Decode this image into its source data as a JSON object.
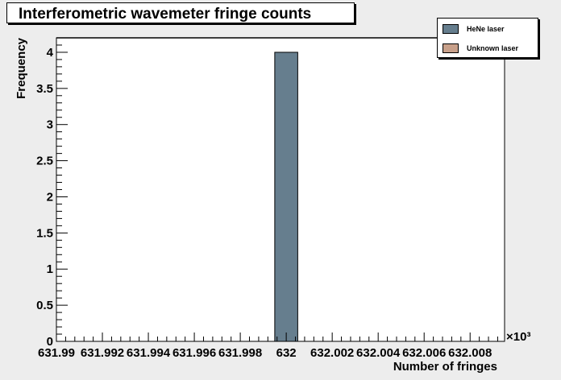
{
  "chart_data": {
    "type": "bar",
    "title": "Interferometric wavemeter fringe counts",
    "xlabel": "Number of fringes",
    "ylabel": "Frequency",
    "x_scale_label": "×10³",
    "x_tick_labels": [
      "631.99",
      "631.992",
      "631.994",
      "631.996",
      "631.998",
      "632",
      "632.002",
      "632.004",
      "632.006",
      "632.008"
    ],
    "x_ticks": [
      631.99,
      631.992,
      631.994,
      631.996,
      631.998,
      632.0,
      632.002,
      632.004,
      632.006,
      632.008
    ],
    "xlim": [
      631.99,
      632.0095
    ],
    "y_tick_labels": [
      "0",
      "0.5",
      "1",
      "1.5",
      "2",
      "2.5",
      "3",
      "3.5",
      "4"
    ],
    "y_ticks": [
      0,
      0.5,
      1,
      1.5,
      2,
      2.5,
      3,
      3.5,
      4
    ],
    "ylim": [
      0,
      4.2
    ],
    "grid": false,
    "legend_position": "top-right",
    "series": [
      {
        "name": "HeNe laser",
        "color": "#667e8e",
        "bins": [
          {
            "x0": 631.9995,
            "x1": 632.0005,
            "value": 4
          }
        ]
      },
      {
        "name": "Unknown laser",
        "color": "#c8a08a",
        "bins": []
      }
    ]
  }
}
